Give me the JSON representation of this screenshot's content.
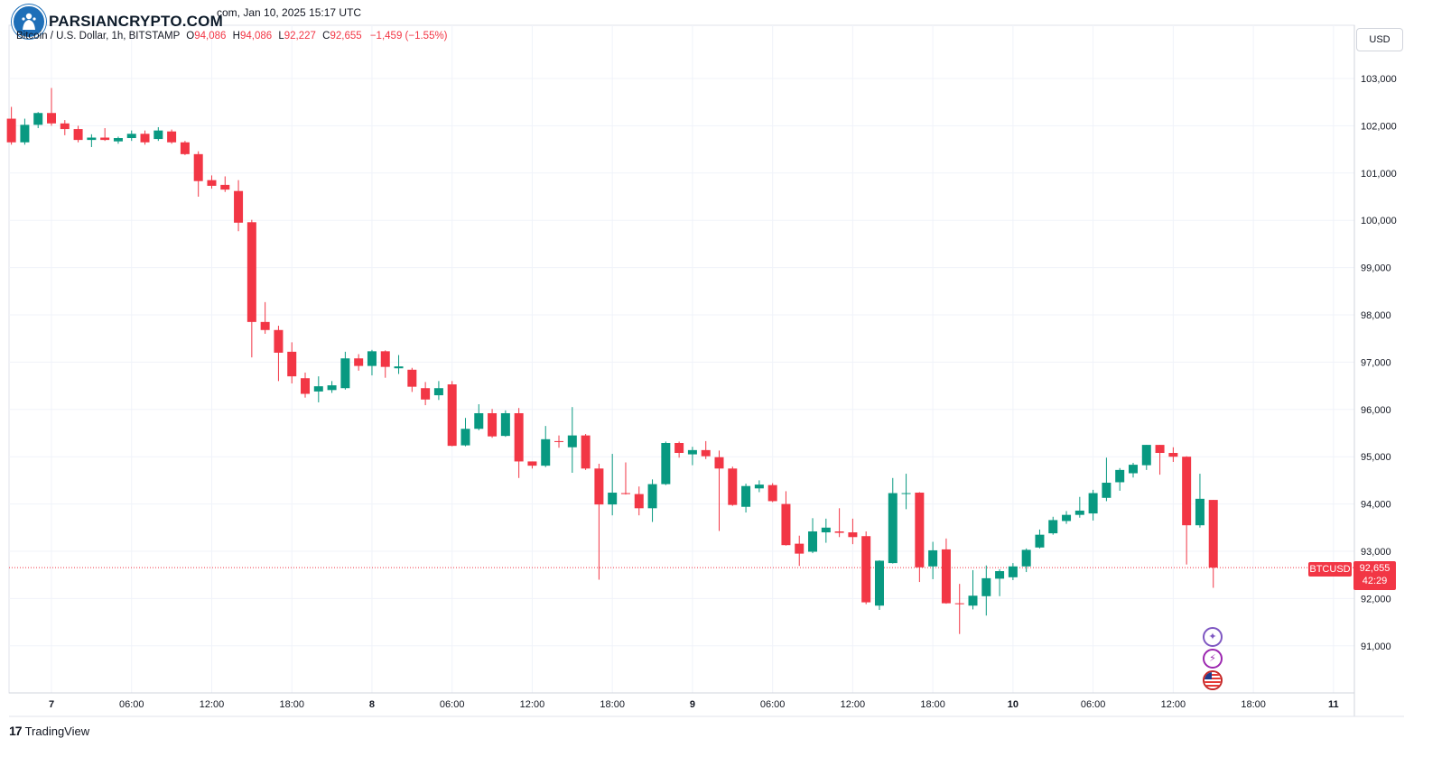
{
  "header": {
    "title_partial": "com, Jan 10, 2025 15:17 UTC",
    "symbol_line": "Bitcoin / U.S. Dollar, 1h, BITSTAMP",
    "open_label": "O",
    "open_value": "94,086",
    "high_label": "H",
    "high_value": "94,086",
    "low_label": "L",
    "low_value": "92,227",
    "close_label": "C",
    "close_value": "92,655",
    "change_value": "−1,459 (−1.55%)"
  },
  "watermark": {
    "brand": "PARSIANCRYPTO.COM"
  },
  "currency_button": "USD",
  "footer": {
    "brand": "TradingView",
    "mark": "17"
  },
  "price_tag": {
    "symbol": "BTCUSD",
    "price": "92,655",
    "countdown": "42:29"
  },
  "colors": {
    "up": "#089981",
    "down": "#f23645",
    "grid": "#f0f3fa",
    "axis_text": "#131722"
  },
  "events": [
    "sparkle-icon",
    "lightning-icon",
    "us-flag-icon"
  ],
  "chart_data": {
    "type": "candlestick",
    "interval": "1h",
    "ylim": [
      90000,
      104000
    ],
    "y_ticks": [
      91000,
      92000,
      93000,
      94000,
      95000,
      96000,
      97000,
      98000,
      99000,
      100000,
      101000,
      102000,
      103000
    ],
    "y_tick_labels": [
      "91,000",
      "92,000",
      "93,000",
      "94,000",
      "95,000",
      "96,000",
      "97,000",
      "98,000",
      "99,000",
      "100,000",
      "101,000",
      "102,000",
      "103,000"
    ],
    "x_ticks": [
      {
        "label": "7",
        "hour": 0
      },
      {
        "label": "06:00",
        "hour": 6
      },
      {
        "label": "12:00",
        "hour": 12
      },
      {
        "label": "18:00",
        "hour": 18
      },
      {
        "label": "8",
        "hour": 24
      },
      {
        "label": "06:00",
        "hour": 30
      },
      {
        "label": "12:00",
        "hour": 36
      },
      {
        "label": "18:00",
        "hour": 42
      },
      {
        "label": "9",
        "hour": 48
      },
      {
        "label": "06:00",
        "hour": 54
      },
      {
        "label": "12:00",
        "hour": 60
      },
      {
        "label": "18:00",
        "hour": 66
      },
      {
        "label": "10",
        "hour": 72
      },
      {
        "label": "06:00",
        "hour": 78
      },
      {
        "label": "12:00",
        "hour": 84
      },
      {
        "label": "18:00",
        "hour": 90
      },
      {
        "label": "11",
        "hour": 96
      }
    ],
    "last_price": 92655,
    "candles": [
      {
        "h": -3,
        "o": 102150,
        "c": 101650,
        "hi": 102400,
        "lo": 101600
      },
      {
        "h": -2,
        "o": 101650,
        "c": 102020,
        "hi": 102150,
        "lo": 101600
      },
      {
        "h": -1,
        "o": 102020,
        "c": 102270,
        "hi": 102290,
        "lo": 101950
      },
      {
        "h": 0,
        "o": 102270,
        "c": 102050,
        "hi": 102800,
        "lo": 102000
      },
      {
        "h": 1,
        "o": 102050,
        "c": 101930,
        "hi": 102120,
        "lo": 101800
      },
      {
        "h": 2,
        "o": 101930,
        "c": 101700,
        "hi": 102000,
        "lo": 101650
      },
      {
        "h": 3,
        "o": 101700,
        "c": 101750,
        "hi": 101820,
        "lo": 101550
      },
      {
        "h": 4,
        "o": 101750,
        "c": 101700,
        "hi": 101950,
        "lo": 101680
      },
      {
        "h": 5,
        "o": 101670,
        "c": 101740,
        "hi": 101770,
        "lo": 101620
      },
      {
        "h": 6,
        "o": 101740,
        "c": 101830,
        "hi": 101900,
        "lo": 101680
      },
      {
        "h": 7,
        "o": 101830,
        "c": 101650,
        "hi": 101900,
        "lo": 101600
      },
      {
        "h": 8,
        "o": 101720,
        "c": 101900,
        "hi": 101970,
        "lo": 101680
      },
      {
        "h": 9,
        "o": 101880,
        "c": 101650,
        "hi": 101920,
        "lo": 101620
      },
      {
        "h": 10,
        "o": 101650,
        "c": 101400,
        "hi": 101680,
        "lo": 101380
      },
      {
        "h": 11,
        "o": 101400,
        "c": 100830,
        "hi": 101460,
        "lo": 100500
      },
      {
        "h": 12,
        "o": 100850,
        "c": 100730,
        "hi": 100950,
        "lo": 100670
      },
      {
        "h": 13,
        "o": 100750,
        "c": 100650,
        "hi": 100930,
        "lo": 100600
      },
      {
        "h": 14,
        "o": 100620,
        "c": 99950,
        "hi": 100850,
        "lo": 99770
      },
      {
        "h": 15,
        "o": 99960,
        "c": 97850,
        "hi": 100010,
        "lo": 97100
      },
      {
        "h": 16,
        "o": 97850,
        "c": 97680,
        "hi": 98270,
        "lo": 97600
      },
      {
        "h": 17,
        "o": 97680,
        "c": 97200,
        "hi": 97770,
        "lo": 96600
      },
      {
        "h": 18,
        "o": 97220,
        "c": 96700,
        "hi": 97420,
        "lo": 96550
      },
      {
        "h": 19,
        "o": 96660,
        "c": 96330,
        "hi": 96780,
        "lo": 96250
      },
      {
        "h": 20,
        "o": 96380,
        "c": 96490,
        "hi": 96700,
        "lo": 96150
      },
      {
        "h": 21,
        "o": 96410,
        "c": 96510,
        "hi": 96600,
        "lo": 96350
      },
      {
        "h": 22,
        "o": 96450,
        "c": 97080,
        "hi": 97220,
        "lo": 96420
      },
      {
        "h": 23,
        "o": 97080,
        "c": 96920,
        "hi": 97170,
        "lo": 96820
      },
      {
        "h": 24,
        "o": 96920,
        "c": 97230,
        "hi": 97260,
        "lo": 96720
      },
      {
        "h": 25,
        "o": 97230,
        "c": 96900,
        "hi": 97250,
        "lo": 96670
      },
      {
        "h": 26,
        "o": 96870,
        "c": 96910,
        "hi": 97150,
        "lo": 96750
      },
      {
        "h": 27,
        "o": 96840,
        "c": 96480,
        "hi": 96880,
        "lo": 96370
      },
      {
        "h": 28,
        "o": 96450,
        "c": 96210,
        "hi": 96580,
        "lo": 96090
      },
      {
        "h": 29,
        "o": 96300,
        "c": 96450,
        "hi": 96600,
        "lo": 96200
      },
      {
        "h": 30,
        "o": 96530,
        "c": 95230,
        "hi": 96600,
        "lo": 95220
      },
      {
        "h": 31,
        "o": 95240,
        "c": 95590,
        "hi": 95820,
        "lo": 95220
      },
      {
        "h": 32,
        "o": 95590,
        "c": 95920,
        "hi": 96110,
        "lo": 95560
      },
      {
        "h": 33,
        "o": 95920,
        "c": 95430,
        "hi": 96010,
        "lo": 95400
      },
      {
        "h": 34,
        "o": 95440,
        "c": 95920,
        "hi": 95980,
        "lo": 95420
      },
      {
        "h": 35,
        "o": 95920,
        "c": 94900,
        "hi": 96030,
        "lo": 94550
      },
      {
        "h": 36,
        "o": 94900,
        "c": 94810,
        "hi": 94900,
        "lo": 94750
      },
      {
        "h": 37,
        "o": 94810,
        "c": 95370,
        "hi": 95650,
        "lo": 94780
      },
      {
        "h": 38,
        "o": 95330,
        "c": 95310,
        "hi": 95450,
        "lo": 95190
      },
      {
        "h": 39,
        "o": 95200,
        "c": 95450,
        "hi": 96050,
        "lo": 94660
      },
      {
        "h": 40,
        "o": 95450,
        "c": 94750,
        "hi": 95480,
        "lo": 94720
      },
      {
        "h": 41,
        "o": 94750,
        "c": 93990,
        "hi": 94850,
        "lo": 92400
      },
      {
        "h": 42,
        "o": 93990,
        "c": 94240,
        "hi": 95060,
        "lo": 93760
      },
      {
        "h": 43,
        "o": 94230,
        "c": 94210,
        "hi": 94880,
        "lo": 94200
      },
      {
        "h": 44,
        "o": 94210,
        "c": 93910,
        "hi": 94370,
        "lo": 93760
      },
      {
        "h": 45,
        "o": 93910,
        "c": 94420,
        "hi": 94520,
        "lo": 93620
      },
      {
        "h": 46,
        "o": 94420,
        "c": 95290,
        "hi": 95320,
        "lo": 94400
      },
      {
        "h": 47,
        "o": 95290,
        "c": 95080,
        "hi": 95320,
        "lo": 94980
      },
      {
        "h": 48,
        "o": 95050,
        "c": 95140,
        "hi": 95210,
        "lo": 94820
      },
      {
        "h": 49,
        "o": 95140,
        "c": 95010,
        "hi": 95330,
        "lo": 94950
      },
      {
        "h": 50,
        "o": 94990,
        "c": 94750,
        "hi": 95130,
        "lo": 93430
      },
      {
        "h": 51,
        "o": 94750,
        "c": 93980,
        "hi": 94790,
        "lo": 93960
      },
      {
        "h": 52,
        "o": 93940,
        "c": 94380,
        "hi": 94430,
        "lo": 93820
      },
      {
        "h": 53,
        "o": 94330,
        "c": 94410,
        "hi": 94500,
        "lo": 94250
      },
      {
        "h": 54,
        "o": 94400,
        "c": 94060,
        "hi": 94440,
        "lo": 94040
      },
      {
        "h": 55,
        "o": 94000,
        "c": 93130,
        "hi": 94270,
        "lo": 93120
      },
      {
        "h": 56,
        "o": 93160,
        "c": 92950,
        "hi": 93330,
        "lo": 92690
      },
      {
        "h": 57,
        "o": 92990,
        "c": 93420,
        "hi": 93700,
        "lo": 92960
      },
      {
        "h": 58,
        "o": 93400,
        "c": 93500,
        "hi": 93690,
        "lo": 93180
      },
      {
        "h": 59,
        "o": 93420,
        "c": 93390,
        "hi": 93910,
        "lo": 93300
      },
      {
        "h": 60,
        "o": 93400,
        "c": 93300,
        "hi": 93690,
        "lo": 93150
      },
      {
        "h": 61,
        "o": 93320,
        "c": 91920,
        "hi": 93420,
        "lo": 91880
      },
      {
        "h": 62,
        "o": 91850,
        "c": 92800,
        "hi": 92810,
        "lo": 91760
      },
      {
        "h": 63,
        "o": 92750,
        "c": 94230,
        "hi": 94550,
        "lo": 92740
      },
      {
        "h": 64,
        "o": 94220,
        "c": 94230,
        "hi": 94640,
        "lo": 93890
      },
      {
        "h": 65,
        "o": 94240,
        "c": 92660,
        "hi": 94250,
        "lo": 92350
      },
      {
        "h": 66,
        "o": 92680,
        "c": 93020,
        "hi": 93200,
        "lo": 92410
      },
      {
        "h": 67,
        "o": 93040,
        "c": 91900,
        "hi": 93270,
        "lo": 91890
      },
      {
        "h": 68,
        "o": 91900,
        "c": 91880,
        "hi": 92310,
        "lo": 91250
      },
      {
        "h": 69,
        "o": 91850,
        "c": 92060,
        "hi": 92600,
        "lo": 91770
      },
      {
        "h": 70,
        "o": 92050,
        "c": 92430,
        "hi": 92700,
        "lo": 91640
      },
      {
        "h": 71,
        "o": 92420,
        "c": 92580,
        "hi": 92620,
        "lo": 92050
      },
      {
        "h": 72,
        "o": 92450,
        "c": 92680,
        "hi": 92750,
        "lo": 92390
      },
      {
        "h": 73,
        "o": 92680,
        "c": 93030,
        "hi": 93060,
        "lo": 92560
      },
      {
        "h": 74,
        "o": 93080,
        "c": 93350,
        "hi": 93460,
        "lo": 93060
      },
      {
        "h": 75,
        "o": 93380,
        "c": 93660,
        "hi": 93730,
        "lo": 93350
      },
      {
        "h": 76,
        "o": 93640,
        "c": 93770,
        "hi": 93850,
        "lo": 93580
      },
      {
        "h": 77,
        "o": 93770,
        "c": 93860,
        "hi": 94150,
        "lo": 93710
      },
      {
        "h": 78,
        "o": 93800,
        "c": 94230,
        "hi": 94300,
        "lo": 93650
      },
      {
        "h": 79,
        "o": 94130,
        "c": 94450,
        "hi": 94980,
        "lo": 94060
      },
      {
        "h": 80,
        "o": 94460,
        "c": 94720,
        "hi": 94760,
        "lo": 94280
      },
      {
        "h": 81,
        "o": 94650,
        "c": 94830,
        "hi": 94870,
        "lo": 94560
      },
      {
        "h": 82,
        "o": 94820,
        "c": 95250,
        "hi": 95250,
        "lo": 94720
      },
      {
        "h": 83,
        "o": 95250,
        "c": 95080,
        "hi": 95250,
        "lo": 94620
      },
      {
        "h": 84,
        "o": 95080,
        "c": 95000,
        "hi": 95200,
        "lo": 94890
      },
      {
        "h": 85,
        "o": 95000,
        "c": 93550,
        "hi": 95010,
        "lo": 92720
      },
      {
        "h": 86,
        "o": 93550,
        "c": 94110,
        "hi": 94640,
        "lo": 93500
      },
      {
        "h": 87,
        "o": 94086,
        "c": 92655,
        "hi": 94086,
        "lo": 92227
      }
    ]
  }
}
